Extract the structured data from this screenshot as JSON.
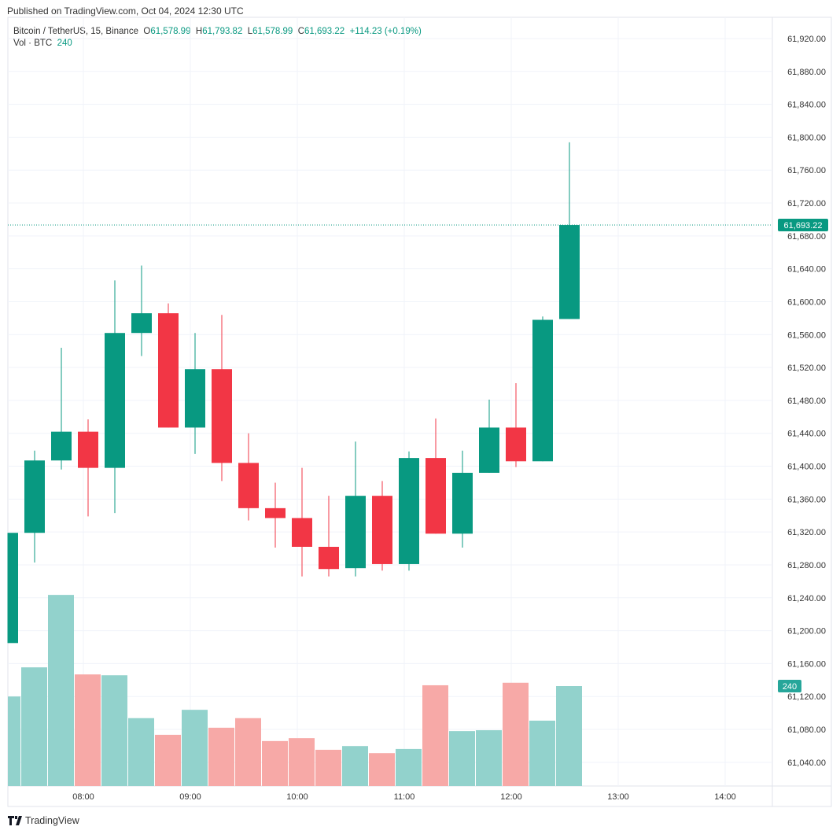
{
  "header": {
    "published": "Published on TradingView.com, Oct 04, 2024 12:30 UTC"
  },
  "legend": {
    "symbol": "Bitcoin / TetherUS, 15, Binance",
    "o_label": "O",
    "o": "61,578.99",
    "h_label": "H",
    "h": "61,793.82",
    "l_label": "L",
    "l": "61,578.99",
    "c_label": "C",
    "c": "61,693.22",
    "change": "+114.23 (+0.19%)",
    "vol_label": "Vol · BTC",
    "vol": "240"
  },
  "footer": {
    "brand": "TradingView"
  },
  "colors": {
    "up": "#089981",
    "down": "#F23645",
    "vol_up": "#92D2CC",
    "vol_down": "#F7A9A7"
  },
  "chart_data": {
    "type": "candlestick",
    "interval": "15",
    "ylim": [
      61020,
      61940
    ],
    "y_ticks": [
      61040,
      61080,
      61120,
      61160,
      61200,
      61240,
      61280,
      61320,
      61360,
      61400,
      61440,
      61480,
      61520,
      61560,
      61600,
      61640,
      61680,
      61720,
      61760,
      61800,
      61840,
      61880,
      61920
    ],
    "x_ticks": [
      "08:00",
      "09:00",
      "10:00",
      "11:00",
      "12:00",
      "13:00",
      "14:00"
    ],
    "last_price_label": "61,693.22",
    "last_volume_label": "240",
    "grid": true,
    "candles": [
      {
        "t": "07:15",
        "o": 61185,
        "h": 61319,
        "l": 61185,
        "c": 61319,
        "v": 215
      },
      {
        "t": "07:30",
        "o": 61319,
        "h": 61419,
        "l": 61283,
        "c": 61407,
        "v": 285
      },
      {
        "t": "07:45",
        "o": 61407,
        "h": 61544,
        "l": 61396,
        "c": 61442,
        "v": 459
      },
      {
        "t": "08:00",
        "o": 61442,
        "h": 61457,
        "l": 61339,
        "c": 61398,
        "v": 268
      },
      {
        "t": "08:15",
        "o": 61398,
        "h": 61626,
        "l": 61343,
        "c": 61562,
        "v": 266
      },
      {
        "t": "08:30",
        "o": 61562,
        "h": 61644,
        "l": 61534,
        "c": 61586,
        "v": 163
      },
      {
        "t": "08:45",
        "o": 61586,
        "h": 61598,
        "l": 61447,
        "c": 61447,
        "v": 123
      },
      {
        "t": "09:00",
        "o": 61447,
        "h": 61562,
        "l": 61415,
        "c": 61518,
        "v": 183
      },
      {
        "t": "09:15",
        "o": 61518,
        "h": 61584,
        "l": 61382,
        "c": 61404,
        "v": 140
      },
      {
        "t": "09:30",
        "o": 61404,
        "h": 61440,
        "l": 61334,
        "c": 61349,
        "v": 163
      },
      {
        "t": "09:45",
        "o": 61349,
        "h": 61380,
        "l": 61301,
        "c": 61337,
        "v": 108
      },
      {
        "t": "10:00",
        "o": 61337,
        "h": 61398,
        "l": 61266,
        "c": 61302,
        "v": 115
      },
      {
        "t": "10:15",
        "o": 61302,
        "h": 61364,
        "l": 61266,
        "c": 61275,
        "v": 87
      },
      {
        "t": "10:30",
        "o": 61276,
        "h": 61430,
        "l": 61266,
        "c": 61364,
        "v": 96
      },
      {
        "t": "10:45",
        "o": 61364,
        "h": 61382,
        "l": 61273,
        "c": 61281,
        "v": 79
      },
      {
        "t": "11:00",
        "o": 61281,
        "h": 61418,
        "l": 61273,
        "c": 61410,
        "v": 89
      },
      {
        "t": "11:15",
        "o": 61410,
        "h": 61458,
        "l": 61318,
        "c": 61318,
        "v": 242
      },
      {
        "t": "11:30",
        "o": 61318,
        "h": 61419,
        "l": 61301,
        "c": 61392,
        "v": 132
      },
      {
        "t": "11:45",
        "o": 61392,
        "h": 61481,
        "l": 61392,
        "c": 61447,
        "v": 134
      },
      {
        "t": "12:00",
        "o": 61447,
        "h": 61501,
        "l": 61399,
        "c": 61406,
        "v": 248
      },
      {
        "t": "12:15",
        "o": 61406,
        "h": 61582,
        "l": 61406,
        "c": 61578,
        "v": 157
      },
      {
        "t": "12:30",
        "o": 61578.99,
        "h": 61793.82,
        "l": 61578.99,
        "c": 61693.22,
        "v": 240
      }
    ]
  }
}
